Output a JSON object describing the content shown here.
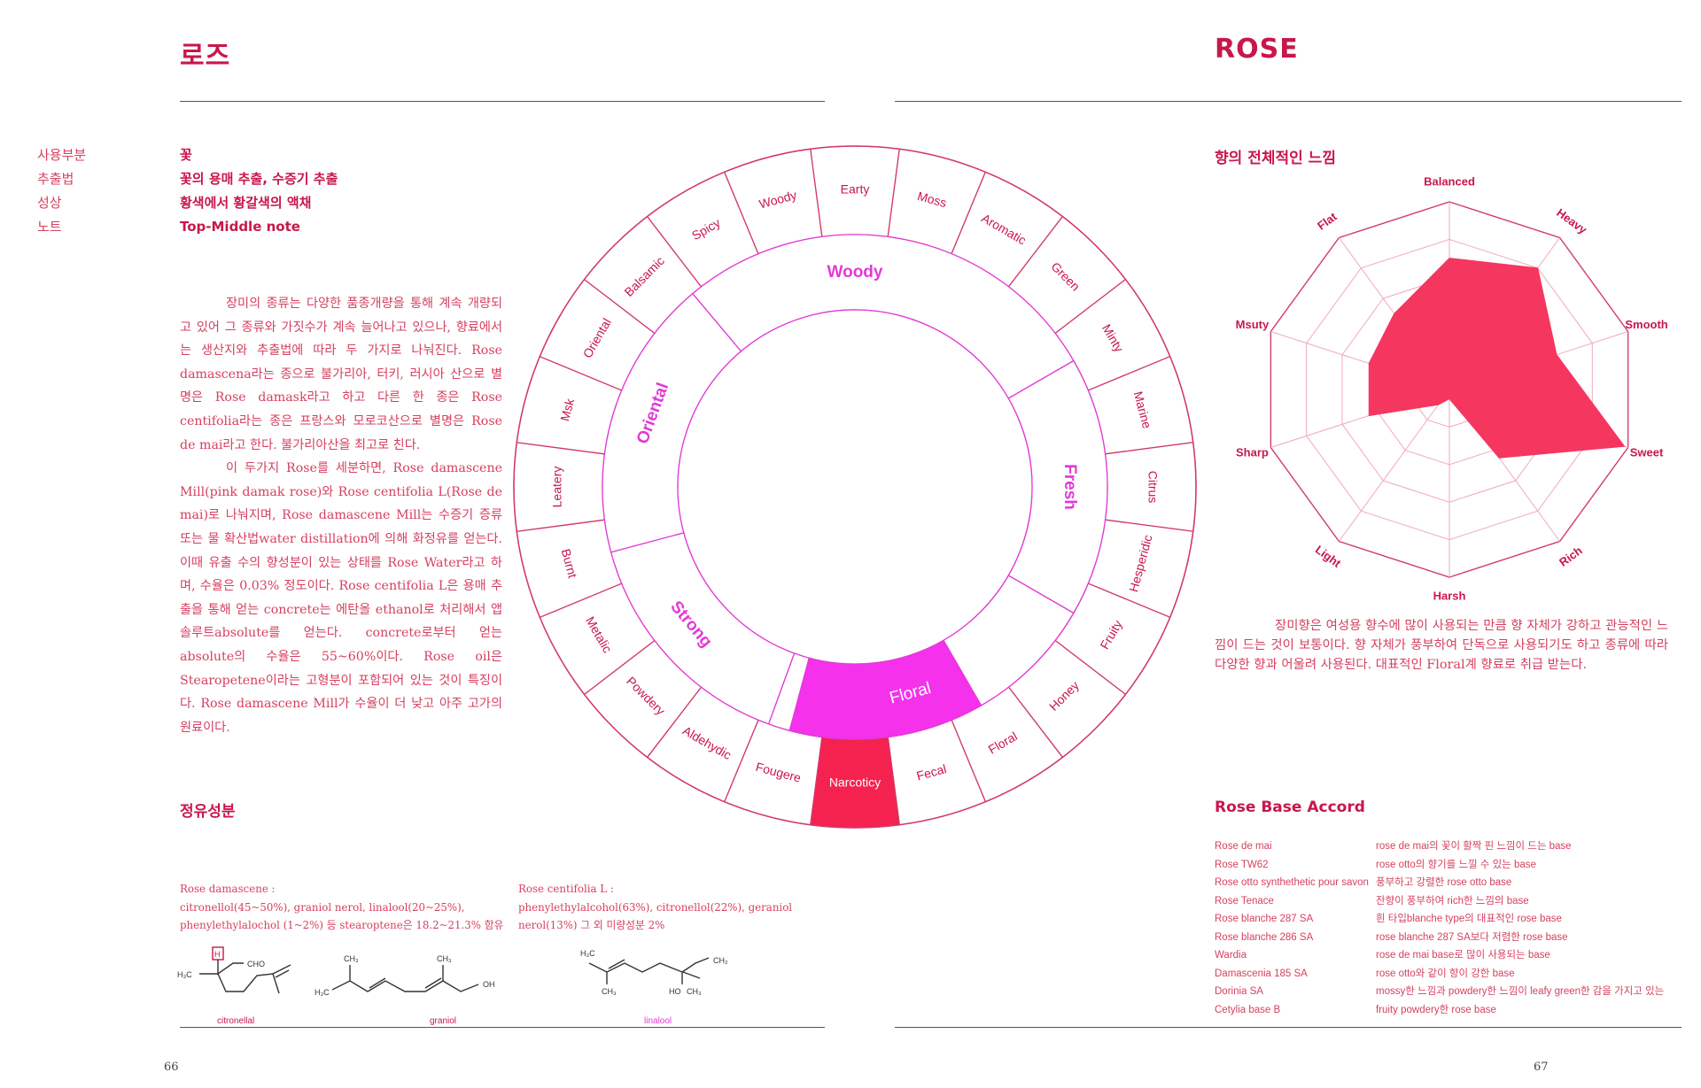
{
  "left_page": {
    "title": "로즈",
    "meta": [
      {
        "label": "사용부분",
        "value": "꽃"
      },
      {
        "label": "추출법",
        "value": "꽃의 용매 추출, 수증기 추출"
      },
      {
        "label": "성상",
        "value": "황색에서 황갈색의 액채"
      },
      {
        "label": "노트",
        "value": "Top-Middle note"
      }
    ],
    "body": [
      "장미의 종류는 다양한 품종개량을 통해 계속 개량되고 있어 그 종류와 가짓수가 계속 늘어나고 있으나, 향료에서는 생산지와 추출법에 따라 두 가지로 나눠진다. Rose damascena라는 종으로 불가리아, 터키, 러시아 산으로 별명은 Rose damask라고 하고 다른 한 종은 Rose centifolia라는 종은 프랑스와 모로코산으로 별명은 Rose de mai라고 한다. 불가리아산을 최고로 친다.",
      "이 두가지 Rose를 세분하면, Rose damascene Mill(pink damak rose)와 Rose centifolia L(Rose de mai)로 나눠지며, Rose damascene Mill는 수증기 증류 또는 물 확산법water distillation에 의해 화정유를 얻는다. 이때 유출 수의 향성분이 있는 상태를 Rose Water라고 하며, 수율은 0.03% 정도이다. Rose centifolia L은 용매 추출을 통해 얻는 concrete는 에탄올 ethanol로 처리해서 앱솔루트absolute를 얻는다. concrete로부터 얻는 absolute의 수율은 55~60%이다. Rose oil은 Stearopetene이라는 고형분이 포함되어 있는 것이 특징이다. Rose damascene Mill가 수율이 더 낮고 아주 고가의 원료이다."
    ],
    "oil_heading": "정유성분",
    "oil_col1": {
      "title": "Rose damascene :",
      "line1": "citronellol(45~50%), graniol nerol, linalool(20~25%),",
      "line2": "phenylethylalochol (1~2%) 등 stearoptene은 18.2~21.3% 함유"
    },
    "oil_col2": {
      "title": "Rose centifolia L :",
      "line1": "phenylethylalcohol(63%), citronellol(22%), geraniol",
      "line2": "nerol(13%) 그 외 미량성분 2%"
    },
    "molecules": [
      "citronellal",
      "graniol",
      "linalool"
    ],
    "molecule_atoms": {
      "cho": "CHO",
      "h": "H",
      "h3c": "H₃C",
      "ch3": "CH₃",
      "oh": "OH",
      "ho": "HO",
      "ch2": "CH₂"
    },
    "page_number": "66"
  },
  "wheel": {
    "inner": [
      "Woody",
      "Fresh",
      "Floral",
      "Strong",
      "Oriental"
    ],
    "outer": [
      "Earty",
      "Moss",
      "Aromatic",
      "Green",
      "Minty",
      "Marine",
      "Citrus",
      "Hesperidic",
      "Fruity",
      "Honey",
      "Floral",
      "Fecal",
      "Narcoticy",
      "Fougere",
      "Aldehydic",
      "Powdery",
      "Metalic",
      "Burnt",
      "Leatery",
      "Msk",
      "Oriental",
      "Balsamic",
      "Spicy",
      "Woody"
    ],
    "highlight_inner": "Floral",
    "highlight_outer": "Narcoticy",
    "colors": {
      "line": "#d13a6c",
      "inner_fill": "#f531ec",
      "outer_fill": "#f5224f",
      "label": "#c8174b",
      "inner_label": "#e23ad6"
    }
  },
  "right_page": {
    "title": "ROSE",
    "radar_heading": "향의 전체적인 느낌",
    "radar_labels": [
      "Balanced",
      "Heavy",
      "Smooth",
      "Sweet",
      "Rich",
      "Harsh",
      "Light",
      "Sharp",
      "Msuty",
      "Flat"
    ],
    "radar_values": [
      0.7,
      0.8,
      0.6,
      0.98,
      0.45,
      0.05,
      0.1,
      0.45,
      0.45,
      0.5
    ],
    "radar_levels": 5,
    "radar_color": "#f5365f",
    "description": "장미향은 여성용 향수에 많이 사용되는 만큼 향 자체가 강하고 관능적인 느낌이 드는 것이 보통이다. 향 자체가 풍부하여 단독으로 사용되기도 하고 종류에 따라 다양한 향과 어울려 사용된다. 대표적인 Floral계 향료로 취급 받는다.",
    "accord_heading": "Rose Base Accord",
    "accords": [
      {
        "name": "Rose de mai",
        "desc": "rose de mai의 꽃이 활짝 핀 느낌이 드는 base"
      },
      {
        "name": "Rose TW62",
        "desc": "rose otto의 향기를 느낄 수 있는 base"
      },
      {
        "name": "Rose otto synthethetic pour savon",
        "desc": "풍부하고 강렬한 rose otto base"
      },
      {
        "name": "Rose Tenace",
        "desc": "잔향이 풍부하여 rich한 느낌의 base"
      },
      {
        "name": "Rose blanche 287 SA",
        "desc": "흰 타입blanche type의 대표적인 rose base"
      },
      {
        "name": "Rose blanche 286 SA",
        "desc": "rose blanche 287 SA보다 저렴한 rose base"
      },
      {
        "name": "Wardia",
        "desc": "rose de mai base로 많이 사용되는 base"
      },
      {
        "name": "Damascenia 185 SA",
        "desc": "rose otto와 같이 향이 강한 base"
      },
      {
        "name": "Dorinia SA",
        "desc": "mossy한 느낌과 powdery한 느낌이 leafy green한 감을 가지고 있는"
      },
      {
        "name": "Cetylia base B",
        "desc": "fruity powdery한  rose base"
      }
    ],
    "page_number": "67"
  }
}
